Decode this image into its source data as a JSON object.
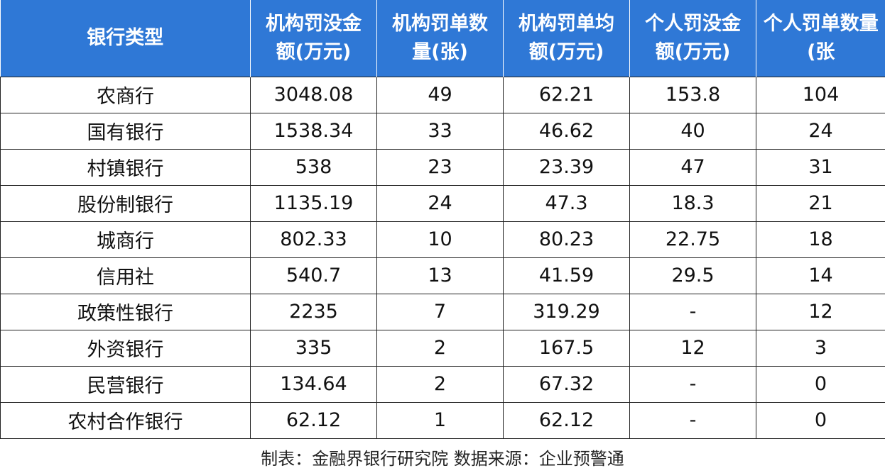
{
  "table": {
    "header": [
      "银行类型",
      "机构罚没金额(万元)",
      "机构罚单数量(张)",
      "机构罚单均额(万元)",
      "个人罚没金额(万元)",
      "个人罚单数量(张"
    ],
    "rows": [
      [
        "农商行",
        3048.08,
        49,
        62.21,
        153.8,
        104
      ],
      [
        "国有银行",
        1538.34,
        33,
        46.62,
        40,
        24
      ],
      [
        "村镇银行",
        538,
        23,
        23.39,
        47,
        31
      ],
      [
        "股份制银行",
        1135.19,
        24,
        47.3,
        18.3,
        21
      ],
      [
        "城商行",
        802.33,
        10,
        80.23,
        22.75,
        18
      ],
      [
        "信用社",
        540.7,
        13,
        41.59,
        29.5,
        14
      ],
      [
        "政策性银行",
        2235,
        7,
        319.29,
        "-",
        12
      ],
      [
        "外资银行",
        335,
        2,
        167.5,
        12,
        3
      ],
      [
        "民营银行",
        134.64,
        2,
        67.32,
        "-",
        0
      ],
      [
        "农村合作银行",
        62.12,
        1,
        62.12,
        "-",
        0
      ]
    ],
    "footer": "制表：金融界银行研究院  数据来源：企业预警通"
  }
}
